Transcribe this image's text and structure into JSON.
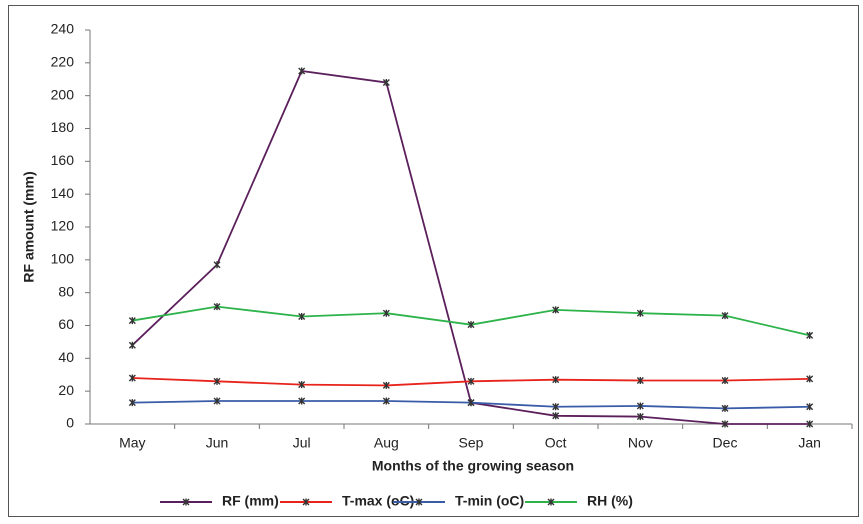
{
  "chart_data": {
    "type": "line",
    "xlabel": "Months  of the growing season",
    "ylabel": "RF amount (mm)",
    "categories": [
      "May",
      "Jun",
      "Jul",
      "Aug",
      "Sep",
      "Oct",
      "Nov",
      "Dec",
      "Jan"
    ],
    "series": [
      {
        "name": "RF (mm)",
        "color": "#5b1f5b",
        "values": [
          48,
          97,
          215,
          208,
          13,
          5,
          4.5,
          0,
          0
        ]
      },
      {
        "name": "T-max (oC)",
        "color": "#e8231c",
        "values": [
          28,
          26,
          24,
          23.5,
          26,
          27,
          26.5,
          26.5,
          27.5
        ]
      },
      {
        "name": "T-min (oC)",
        "color": "#3a5ca8",
        "values": [
          13,
          14,
          14,
          14,
          13,
          10.5,
          11,
          9.5,
          10.5
        ]
      },
      {
        "name": "RH (%)",
        "color": "#2db34a",
        "values": [
          63,
          71.5,
          65.5,
          67.5,
          60.5,
          69.5,
          67.5,
          66,
          54
        ]
      }
    ],
    "ylim": [
      0,
      240
    ],
    "yticks": [
      0,
      20,
      40,
      60,
      80,
      100,
      120,
      140,
      160,
      180,
      200,
      220,
      240
    ],
    "grid": false,
    "legend": "bottom"
  }
}
